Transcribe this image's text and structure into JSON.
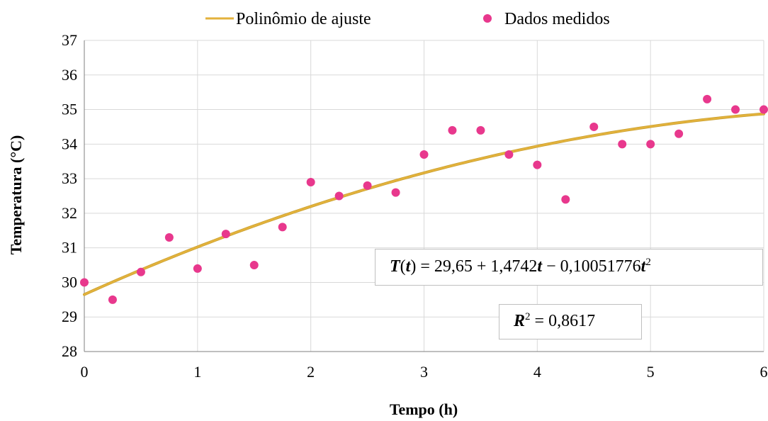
{
  "chart_data": {
    "type": "scatter",
    "xlabel": "Tempo (h)",
    "ylabel": "Temperatura (°C)",
    "xlim": [
      0,
      6
    ],
    "ylim": [
      28,
      37
    ],
    "xticks": [
      "0",
      "1",
      "2",
      "3",
      "4",
      "5",
      "6"
    ],
    "yticks": [
      "28",
      "29",
      "30",
      "31",
      "32",
      "33",
      "34",
      "35",
      "36",
      "37"
    ],
    "grid": true,
    "legend_position": "top",
    "series": [
      {
        "name": "Polinômio de ajuste",
        "kind": "line",
        "color": "#e3b23c",
        "coefficients": [
          29.65,
          1.4742,
          -0.10051776
        ]
      },
      {
        "name": "Dados medidos",
        "kind": "scatter",
        "color": "#e8388d",
        "x": [
          0,
          0.25,
          0.5,
          0.75,
          1,
          1.25,
          1.5,
          1.75,
          2,
          2.25,
          2.5,
          2.75,
          3,
          3.25,
          3.5,
          3.75,
          4,
          4.25,
          4.5,
          4.75,
          5,
          5.25,
          5.5,
          5.75,
          6
        ],
        "y": [
          30.0,
          29.5,
          30.3,
          31.3,
          30.4,
          31.4,
          30.5,
          31.6,
          32.9,
          32.5,
          32.8,
          32.6,
          33.7,
          34.4,
          34.4,
          33.7,
          33.4,
          32.4,
          34.5,
          34.0,
          34.0,
          34.3,
          35.3,
          35.0,
          35.0
        ]
      }
    ],
    "annotations": {
      "equation": {
        "lhs": "T",
        "var": "t",
        "rhs_const": "29,65",
        "rhs_lin": "1,4742",
        "rhs_quad": "0,10051776",
        "exp": "2"
      },
      "r2": {
        "label": "R",
        "exp": "2",
        "value": "0,8617"
      }
    }
  }
}
